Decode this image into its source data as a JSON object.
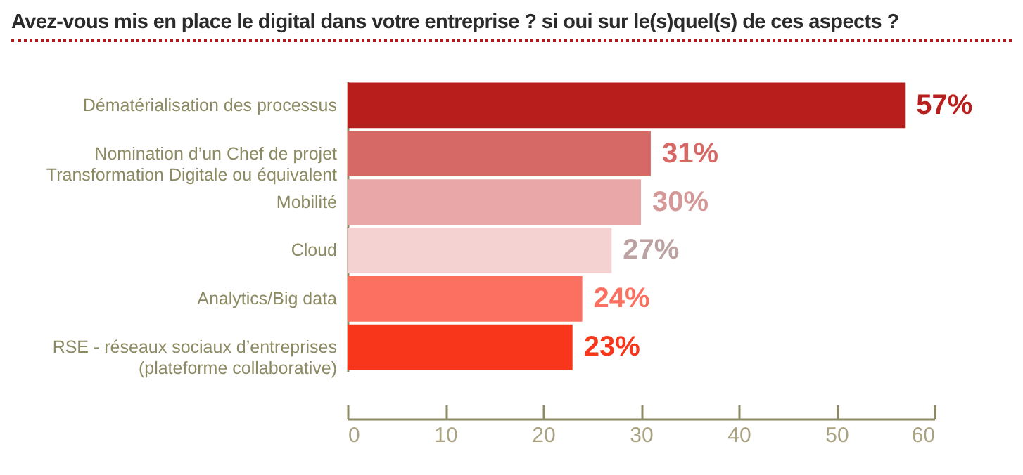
{
  "chart_data": {
    "type": "bar",
    "orientation": "horizontal",
    "title": "Avez-vous mis en place le digital dans votre entreprise ? si oui sur le(s)quel(s) de ces aspects ?",
    "categories": [
      "Dématérialisation des processus",
      "Nomination d’un Chef de projet\nTransformation Digitale ou équivalent",
      "Mobilité",
      "Cloud",
      "Analytics/Big data",
      "RSE - réseaux sociaux d’entreprises\n(plateforme collaborative)"
    ],
    "values": [
      57,
      31,
      30,
      27,
      24,
      23
    ],
    "colors": [
      "#b81f1c",
      "#d66866",
      "#e9a7a7",
      "#f4d2d2",
      "#fb7060",
      "#f7361c"
    ],
    "value_labels": [
      "57%",
      "31%",
      "30%",
      "27%",
      "24%",
      "23%"
    ],
    "xlim": [
      0,
      60
    ],
    "xticks": [
      0,
      10,
      20,
      30,
      40,
      50,
      60
    ]
  }
}
